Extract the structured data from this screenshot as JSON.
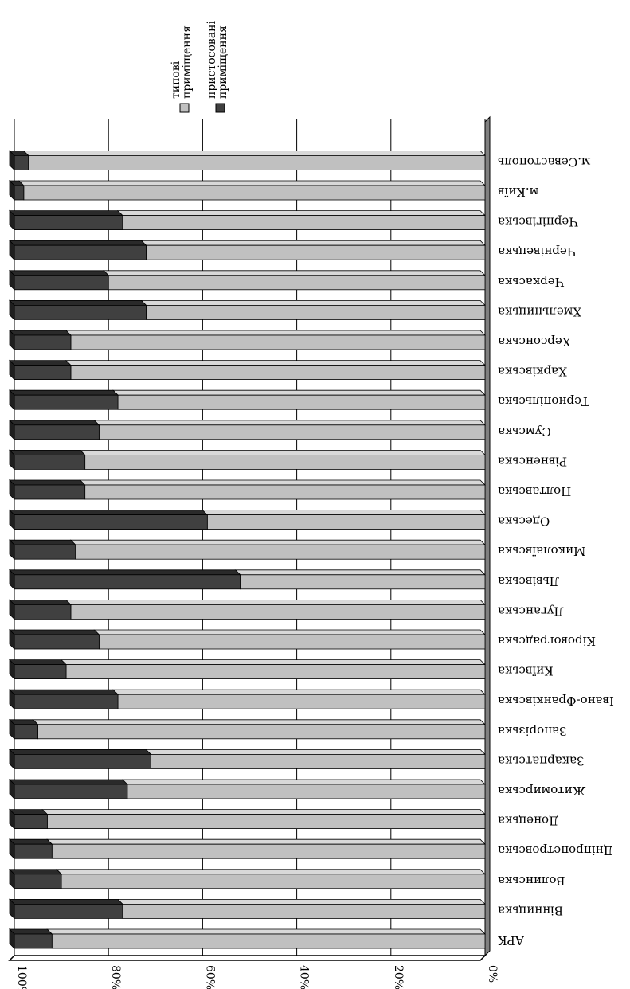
{
  "chart_data": {
    "type": "bar",
    "stacked": "percent",
    "orientation": "horizontal",
    "rotated": "180deg",
    "categories": [
      "АРК",
      "Вінницька",
      "Волинська",
      "Дніпропетровська",
      "Донецька",
      "Житомирська",
      "Закарпатська",
      "Запорізька",
      "Івано-Франківська",
      "Київська",
      "Кіровоградська",
      "Луганська",
      "Львівська",
      "Миколаївська",
      "Одеська",
      "Полтавська",
      "Рівненська",
      "Сумська",
      "Тернопільська",
      "Харківська",
      "Херсонська",
      "Хмельницька",
      "Черкаська",
      "Чернівецька",
      "Чернігівська",
      "м.Київ",
      "м.Севастополь"
    ],
    "series": [
      {
        "name": "типові приміщення",
        "color": "#c0c0c0",
        "values": [
          92,
          77,
          90,
          92,
          93,
          76,
          71,
          95,
          78,
          89,
          82,
          88,
          52,
          87,
          59,
          85,
          85,
          82,
          78,
          88,
          88,
          72,
          80,
          72,
          77,
          98,
          97
        ]
      },
      {
        "name": "пристосовані приміщення",
        "color": "#404040",
        "values": [
          8,
          23,
          10,
          8,
          7,
          24,
          29,
          5,
          22,
          11,
          18,
          12,
          48,
          13,
          41,
          15,
          15,
          18,
          22,
          12,
          12,
          28,
          20,
          28,
          23,
          2,
          3
        ]
      }
    ],
    "ticks": [
      "0%",
      "20%",
      "40%",
      "60%",
      "80%",
      "100%"
    ],
    "xlim": [
      0,
      100
    ],
    "grid": true,
    "legend_position": "top-right"
  }
}
